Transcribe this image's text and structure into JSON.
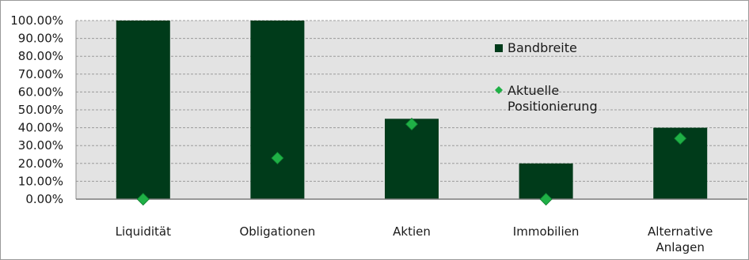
{
  "chart_data": {
    "type": "bar",
    "title": "",
    "xlabel": "",
    "ylabel": "",
    "ylim": [
      0,
      100
    ],
    "y_ticks": [
      "0.00%",
      "10.00%",
      "20.00%",
      "30.00%",
      "40.00%",
      "50.00%",
      "60.00%",
      "70.00%",
      "80.00%",
      "90.00%",
      "100.00%"
    ],
    "categories": [
      [
        "Liquidität"
      ],
      [
        "Obligationen"
      ],
      [
        "Aktien"
      ],
      [
        "Immobilien"
      ],
      [
        "Alternative",
        "Anlagen"
      ]
    ],
    "series": [
      {
        "name": "Bandbreite",
        "kind": "bar",
        "color": "#003b1a",
        "values": [
          100,
          100,
          45,
          20,
          40
        ]
      },
      {
        "name": "Aktuelle Positionierung",
        "kind": "marker",
        "marker": "diamond",
        "color": "#1fb046",
        "values": [
          0,
          23,
          42,
          0,
          34
        ]
      }
    ],
    "legend": {
      "placement": "inside-right",
      "items": [
        {
          "label": [
            "Bandbreite"
          ],
          "swatch": "square",
          "color": "#003b1a"
        },
        {
          "label": [
            "Aktuelle",
            "Positionierung"
          ],
          "swatch": "diamond",
          "color": "#1fb046"
        }
      ]
    },
    "grid": true,
    "plot_background": "#e3e3e3"
  }
}
